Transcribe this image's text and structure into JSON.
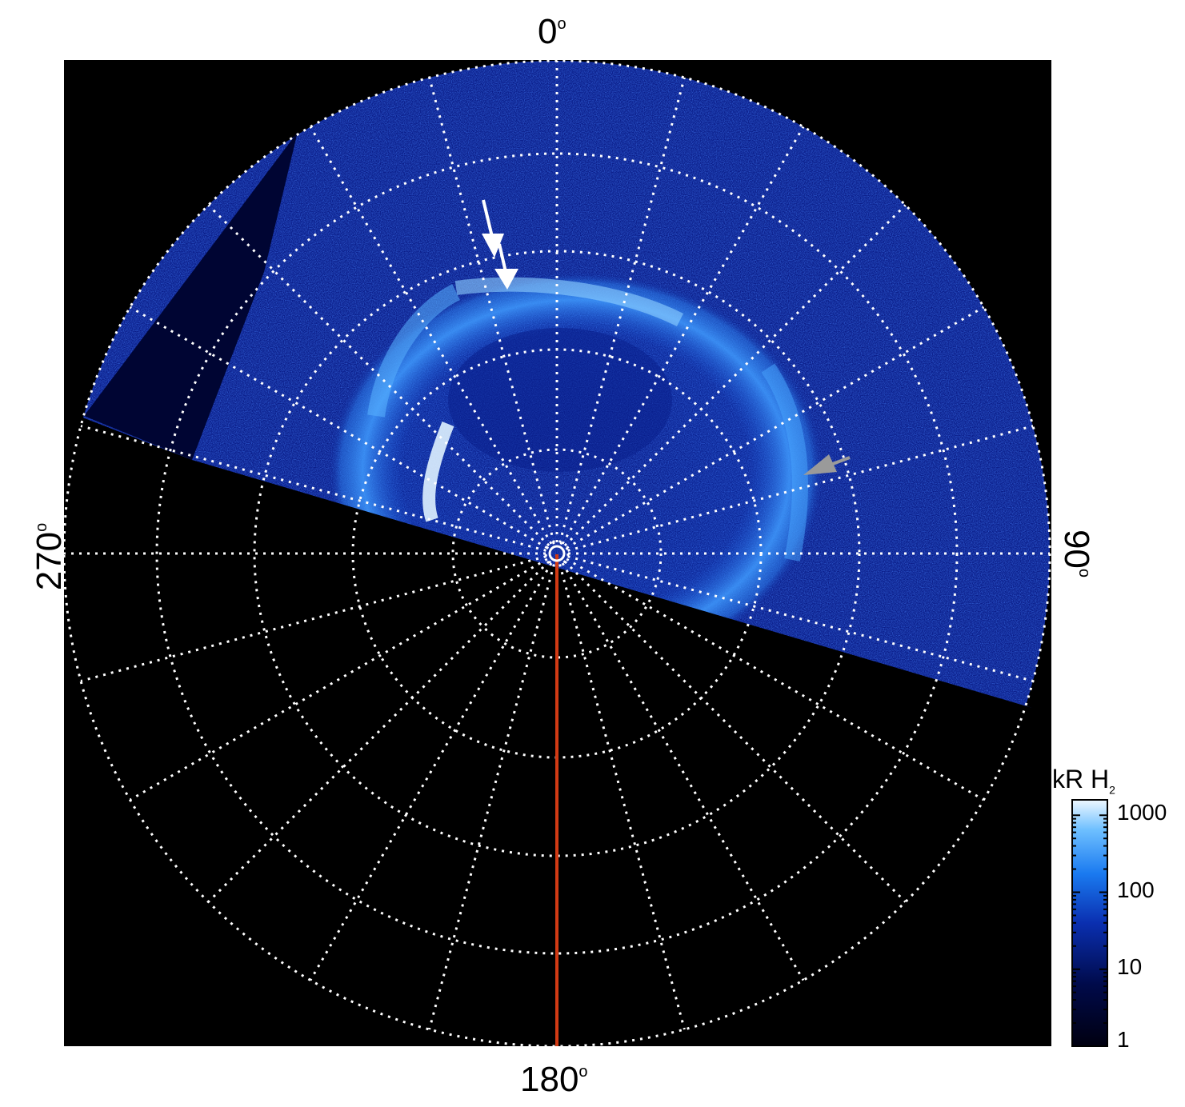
{
  "figure": {
    "angle_labels": {
      "top": "0",
      "right": "90",
      "bottom": "180",
      "left": "270"
    },
    "degree_symbol": "o"
  },
  "colorbar": {
    "title_main": "kR H",
    "title_sub": "2",
    "ticks": [
      "1000",
      "100",
      "10",
      "1"
    ],
    "colors": [
      "#000010",
      "#000a4a",
      "#0a2fb0",
      "#1a7af0",
      "#6fc0ff",
      "#eef8ff"
    ]
  },
  "colors": {
    "background": "#000000",
    "aurora_dark": "#0a1aa0",
    "aurora_mid": "#1a6fe8",
    "aurora_bright": "#bfe6ff",
    "grid": "#ffffff",
    "meridian": "#d23a14",
    "arrow_white": "#ffffff",
    "arrow_gray": "#9a9a9a"
  }
}
